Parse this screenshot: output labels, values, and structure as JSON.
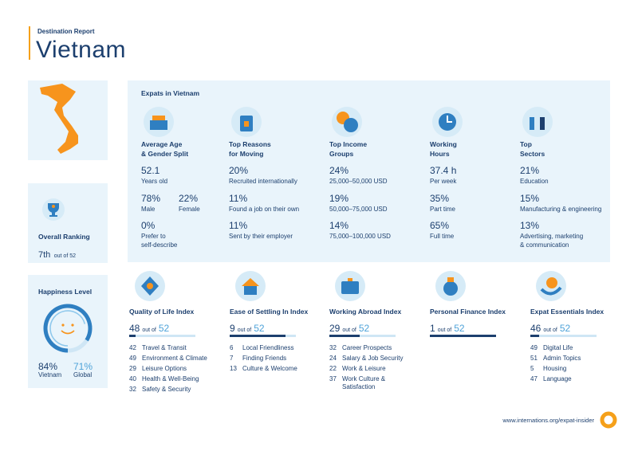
{
  "header": {
    "subtitle": "Destination Report",
    "title": "Vietnam"
  },
  "overall_ranking": {
    "label": "Overall Ranking",
    "rank": "7th",
    "out_of": "out of 52"
  },
  "happiness": {
    "label": "Happiness Level",
    "vietnam": {
      "value": 84,
      "label": "84%",
      "name": "Vietnam"
    },
    "global": {
      "value": 71,
      "label": "71%",
      "name": "Global"
    }
  },
  "expats": {
    "title": "Expats in Vietnam",
    "columns": [
      {
        "heading": [
          "Average Age",
          "& Gender Split"
        ],
        "stats": [
          {
            "value": "52.1",
            "label": [
              "Years old"
            ]
          },
          {
            "pair": [
              {
                "value": "78%",
                "label": [
                  "Male"
                ]
              },
              {
                "value": "22%",
                "label": [
                  "Female"
                ]
              }
            ]
          },
          {
            "value": "0%",
            "label": [
              "Prefer to",
              "self-describe"
            ]
          }
        ]
      },
      {
        "heading": [
          "Top Reasons",
          "for Moving"
        ],
        "stats": [
          {
            "value": "20%",
            "label": [
              "Recruited internationally"
            ]
          },
          {
            "value": "11%",
            "label": [
              "Found a job on their own"
            ]
          },
          {
            "value": "11%",
            "label": [
              "Sent by their employer"
            ]
          }
        ]
      },
      {
        "heading": [
          "Top Income",
          "Groups"
        ],
        "stats": [
          {
            "value": "24%",
            "label": [
              "25,000–50,000 USD"
            ]
          },
          {
            "value": "19%",
            "label": [
              "50,000–75,000 USD"
            ]
          },
          {
            "value": "14%",
            "label": [
              "75,000–100,000 USD"
            ]
          }
        ]
      },
      {
        "heading": [
          "Working",
          "Hours"
        ],
        "stats": [
          {
            "value": "37.4 h",
            "label": [
              "Per week"
            ]
          },
          {
            "value": "35%",
            "label": [
              "Part time"
            ]
          },
          {
            "value": "65%",
            "label": [
              "Full time"
            ]
          }
        ]
      },
      {
        "heading": [
          "Top",
          "Sectors"
        ],
        "stats": [
          {
            "value": "21%",
            "label": [
              "Education"
            ]
          },
          {
            "value": "15%",
            "label": [
              "Manufacturing & engineering"
            ]
          },
          {
            "value": "13%",
            "label": [
              "Advertising, marketing",
              "& communication"
            ]
          }
        ]
      }
    ]
  },
  "indices": [
    {
      "title": "Quality of Life Index",
      "rank": 48,
      "out_of": "out of",
      "total": 52,
      "items": [
        {
          "rank": 42,
          "name": "Travel & Transit"
        },
        {
          "rank": 49,
          "name": "Environment & Climate"
        },
        {
          "rank": 29,
          "name": "Leisure Options"
        },
        {
          "rank": 40,
          "name": "Health & Well-Being"
        },
        {
          "rank": 32,
          "name": "Safety & Security"
        }
      ]
    },
    {
      "title": "Ease of Settling In Index",
      "rank": 9,
      "out_of": "out of",
      "total": 52,
      "items": [
        {
          "rank": 6,
          "name": "Local Friendliness"
        },
        {
          "rank": 7,
          "name": "Finding Friends"
        },
        {
          "rank": 13,
          "name": "Culture & Welcome"
        }
      ]
    },
    {
      "title": "Working Abroad Index",
      "rank": 29,
      "out_of": "out of",
      "total": 52,
      "items": [
        {
          "rank": 32,
          "name": "Career Prospects"
        },
        {
          "rank": 24,
          "name": "Salary & Job Security"
        },
        {
          "rank": 22,
          "name": "Work & Leisure"
        },
        {
          "rank": 37,
          "name": "Work Culture & Satisfaction"
        }
      ]
    },
    {
      "title": "Personal Finance Index",
      "rank": 1,
      "out_of": "out of",
      "total": 52,
      "items": []
    },
    {
      "title": "Expat Essentials Index",
      "rank": 46,
      "out_of": "out of",
      "total": 52,
      "items": [
        {
          "rank": 49,
          "name": "Digital Life"
        },
        {
          "rank": 51,
          "name": "Admin Topics"
        },
        {
          "rank": 5,
          "name": "Housing"
        },
        {
          "rank": 47,
          "name": "Language"
        }
      ]
    }
  ],
  "footer": {
    "url": "www.internations.org/expat-insider"
  }
}
